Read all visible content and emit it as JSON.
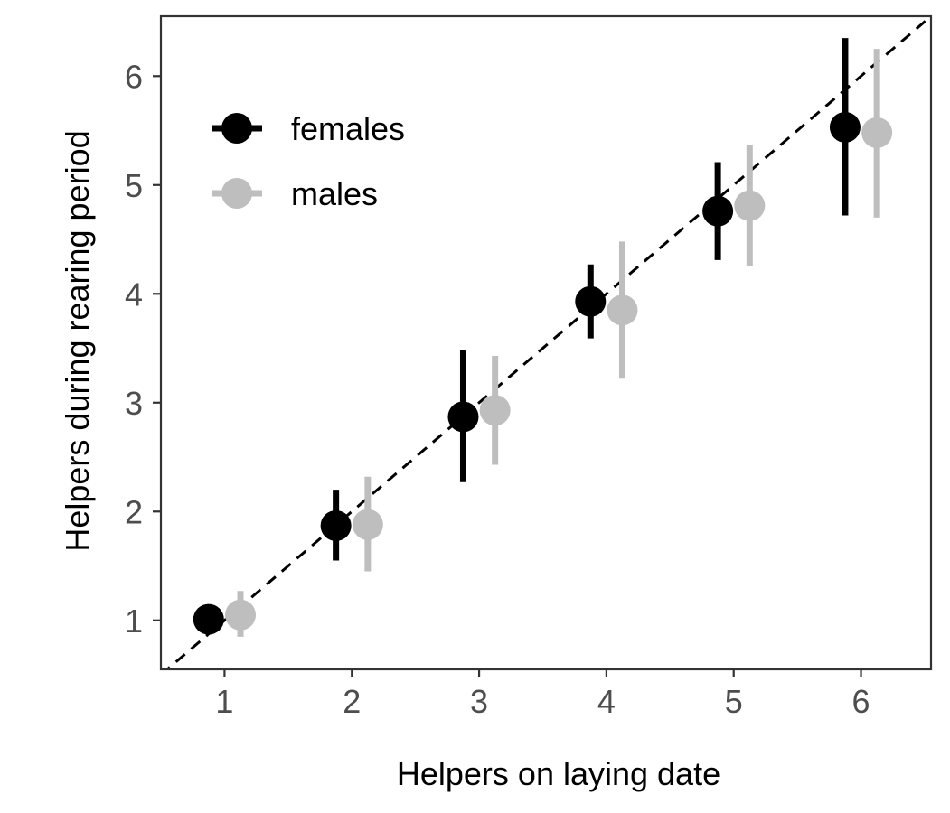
{
  "chart_data": {
    "type": "scatter",
    "title": "",
    "xlabel": "Helpers on laying date",
    "ylabel": "Helpers during rearing period",
    "x_ticks": [
      1,
      2,
      3,
      4,
      5,
      6
    ],
    "y_ticks": [
      1,
      2,
      3,
      4,
      5,
      6
    ],
    "xlim": [
      0.5,
      6.55
    ],
    "ylim": [
      0.55,
      6.55
    ],
    "grid": false,
    "legend_position": "top-left",
    "reference_line": {
      "style": "dashed",
      "slope": 1,
      "intercept": 0,
      "color": "#000000"
    },
    "series": [
      {
        "name": "females",
        "color": "#000000",
        "points": [
          {
            "x": 1,
            "y": 1.01,
            "lo": 1.01,
            "hi": 1.01
          },
          {
            "x": 2,
            "y": 1.87,
            "lo": 1.55,
            "hi": 2.2
          },
          {
            "x": 3,
            "y": 2.87,
            "lo": 2.27,
            "hi": 3.48
          },
          {
            "x": 4,
            "y": 3.93,
            "lo": 3.59,
            "hi": 4.27
          },
          {
            "x": 5,
            "y": 4.76,
            "lo": 4.31,
            "hi": 5.21
          },
          {
            "x": 6,
            "y": 5.53,
            "lo": 4.72,
            "hi": 6.35
          }
        ]
      },
      {
        "name": "males",
        "color": "#bebebe",
        "points": [
          {
            "x": 1,
            "y": 1.05,
            "lo": 0.85,
            "hi": 1.27
          },
          {
            "x": 2,
            "y": 1.88,
            "lo": 1.45,
            "hi": 2.32
          },
          {
            "x": 3,
            "y": 2.93,
            "lo": 2.43,
            "hi": 3.43
          },
          {
            "x": 4,
            "y": 3.85,
            "lo": 3.22,
            "hi": 4.48
          },
          {
            "x": 5,
            "y": 4.81,
            "lo": 4.26,
            "hi": 5.37
          },
          {
            "x": 6,
            "y": 5.48,
            "lo": 4.7,
            "hi": 6.25
          }
        ]
      }
    ]
  }
}
